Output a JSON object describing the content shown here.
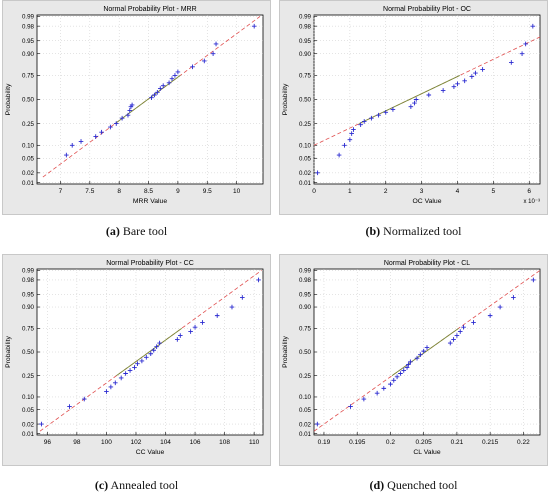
{
  "colors": {
    "frame_bg": "#e8e8e8",
    "axes_bg": "#ffffff",
    "points": "#2a2ad0",
    "fit_dashed": "#e05050",
    "fit_solid": "#7a8a3a"
  },
  "chart_data": [
    {
      "type": "scatter",
      "title": "Normal Probability Plot - MRR",
      "xlabel": "MRR Value",
      "ylabel": "Probability",
      "xlim": [
        6.6,
        10.45
      ],
      "xticks": [
        7,
        7.5,
        8,
        8.5,
        9,
        9.5,
        10
      ],
      "xticklabels": [
        "7",
        "7.5",
        "8",
        "8.5",
        "9",
        "9.5",
        "10"
      ],
      "x_multiplier": "",
      "yscale": "normal-probability",
      "yticks": [
        0.01,
        0.02,
        0.05,
        0.1,
        0.25,
        0.5,
        0.75,
        0.9,
        0.95,
        0.98,
        0.99
      ],
      "yticklabels": [
        "0.01",
        "0.02",
        "0.05",
        "0.10",
        "0.25",
        "0.50",
        "0.75",
        "0.90",
        "0.95",
        "0.98",
        "0.99"
      ],
      "fit_line": {
        "x1": 6.7,
        "x2": 10.4,
        "p1": 0.015,
        "p2": 0.99
      },
      "series": [
        {
          "x": [
            7.1,
            7.2,
            7.35,
            7.6,
            7.7,
            7.85,
            7.95,
            8.05,
            8.15,
            8.18,
            8.2,
            8.22,
            8.55,
            8.6,
            8.65,
            8.7,
            8.75,
            8.85,
            8.9,
            8.95,
            9.0,
            9.25,
            9.45,
            9.6,
            9.65,
            10.3
          ],
          "p": [
            0.06,
            0.1,
            0.12,
            0.15,
            0.18,
            0.22,
            0.25,
            0.3,
            0.33,
            0.38,
            0.42,
            0.44,
            0.52,
            0.55,
            0.58,
            0.62,
            0.65,
            0.68,
            0.72,
            0.75,
            0.78,
            0.82,
            0.86,
            0.9,
            0.94,
            0.98
          ]
        }
      ]
    },
    {
      "type": "scatter",
      "title": "Normal Probability Plot - OC",
      "xlabel": "OC Value",
      "ylabel": "Probability",
      "xlim": [
        0,
        6.3
      ],
      "xticks": [
        0,
        1,
        2,
        3,
        4,
        5,
        6
      ],
      "xticklabels": [
        "0",
        "1",
        "2",
        "3",
        "4",
        "5",
        "6"
      ],
      "x_multiplier": "x 10⁻³",
      "yscale": "normal-probability",
      "yticks": [
        0.01,
        0.02,
        0.05,
        0.1,
        0.25,
        0.5,
        0.75,
        0.9,
        0.95,
        0.98,
        0.99
      ],
      "yticklabels": [
        "0.01",
        "0.02",
        "0.05",
        "0.10",
        "0.25",
        "0.50",
        "0.75",
        "0.90",
        "0.95",
        "0.98",
        "0.99"
      ],
      "fit_line": {
        "x1": 0.0,
        "x2": 6.3,
        "p1": 0.1,
        "p2": 0.96
      },
      "series": [
        {
          "x": [
            0.1,
            0.7,
            0.85,
            1.0,
            1.05,
            1.1,
            1.3,
            1.4,
            1.6,
            1.8,
            2.0,
            2.2,
            2.7,
            2.8,
            2.85,
            3.2,
            3.6,
            3.9,
            4.0,
            4.2,
            4.4,
            4.5,
            4.7,
            5.5,
            5.8,
            5.9,
            6.1
          ],
          "p": [
            0.02,
            0.06,
            0.1,
            0.13,
            0.17,
            0.2,
            0.24,
            0.27,
            0.3,
            0.33,
            0.36,
            0.39,
            0.42,
            0.46,
            0.5,
            0.55,
            0.6,
            0.64,
            0.67,
            0.7,
            0.74,
            0.77,
            0.8,
            0.85,
            0.9,
            0.94,
            0.98
          ]
        }
      ]
    },
    {
      "type": "scatter",
      "title": "Normal Probability Plot - CC",
      "xlabel": "CC Value",
      "ylabel": "Probability",
      "xlim": [
        95.3,
        110.6
      ],
      "xticks": [
        96,
        98,
        100,
        102,
        104,
        106,
        108,
        110
      ],
      "xticklabels": [
        "96",
        "98",
        "100",
        "102",
        "104",
        "106",
        "108",
        "110"
      ],
      "x_multiplier": "",
      "yscale": "normal-probability",
      "yticks": [
        0.01,
        0.02,
        0.05,
        0.1,
        0.25,
        0.5,
        0.75,
        0.9,
        0.95,
        0.98,
        0.99
      ],
      "yticklabels": [
        "0.01",
        "0.02",
        "0.05",
        "0.10",
        "0.25",
        "0.50",
        "0.75",
        "0.90",
        "0.95",
        "0.98",
        "0.99"
      ],
      "fit_line": {
        "x1": 95.5,
        "x2": 110.5,
        "p1": 0.012,
        "p2": 0.99
      },
      "series": [
        {
          "x": [
            95.6,
            97.5,
            98.5,
            100.0,
            100.3,
            100.6,
            101.0,
            101.3,
            101.6,
            101.9,
            102.1,
            102.4,
            102.7,
            103.0,
            103.2,
            103.4,
            103.6,
            104.8,
            105.0,
            105.7,
            106.0,
            106.5,
            107.5,
            108.5,
            109.2,
            110.3
          ],
          "p": [
            0.02,
            0.06,
            0.09,
            0.13,
            0.16,
            0.19,
            0.23,
            0.27,
            0.3,
            0.33,
            0.37,
            0.4,
            0.44,
            0.48,
            0.52,
            0.56,
            0.6,
            0.64,
            0.68,
            0.72,
            0.76,
            0.8,
            0.85,
            0.9,
            0.94,
            0.98
          ]
        }
      ]
    },
    {
      "type": "scatter",
      "title": "Normal Probability Plot - CL",
      "xlabel": "CL Value",
      "ylabel": "Probability",
      "xlim": [
        0.1885,
        0.2225
      ],
      "xticks": [
        0.19,
        0.195,
        0.2,
        0.205,
        0.21,
        0.215,
        0.22
      ],
      "xticklabels": [
        "0.19",
        "0.195",
        "0.2",
        "0.205",
        "0.21",
        "0.215",
        "0.22"
      ],
      "x_multiplier": "",
      "yscale": "normal-probability",
      "yticks": [
        0.01,
        0.02,
        0.05,
        0.1,
        0.25,
        0.5,
        0.75,
        0.9,
        0.95,
        0.98,
        0.99
      ],
      "yticklabels": [
        "0.01",
        "0.02",
        "0.05",
        "0.10",
        "0.25",
        "0.50",
        "0.75",
        "0.90",
        "0.95",
        "0.98",
        "0.99"
      ],
      "fit_line": {
        "x1": 0.1885,
        "x2": 0.2225,
        "p1": 0.012,
        "p2": 0.99
      },
      "series": [
        {
          "x": [
            0.189,
            0.194,
            0.196,
            0.198,
            0.199,
            0.2,
            0.2005,
            0.201,
            0.2015,
            0.202,
            0.2025,
            0.2027,
            0.203,
            0.204,
            0.2045,
            0.205,
            0.2055,
            0.209,
            0.2095,
            0.21,
            0.2105,
            0.211,
            0.2125,
            0.215,
            0.2165,
            0.2185,
            0.2215
          ],
          "p": [
            0.02,
            0.06,
            0.09,
            0.12,
            0.15,
            0.18,
            0.21,
            0.24,
            0.27,
            0.3,
            0.33,
            0.36,
            0.39,
            0.43,
            0.47,
            0.51,
            0.55,
            0.6,
            0.64,
            0.68,
            0.72,
            0.76,
            0.8,
            0.85,
            0.9,
            0.94,
            0.98
          ]
        }
      ]
    }
  ],
  "captions": [
    {
      "letter": "(a)",
      "text": "Bare tool"
    },
    {
      "letter": "(b)",
      "text": "Normalized tool"
    },
    {
      "letter": "(c)",
      "text": "Annealed tool"
    },
    {
      "letter": "(d)",
      "text": "Quenched tool"
    }
  ]
}
